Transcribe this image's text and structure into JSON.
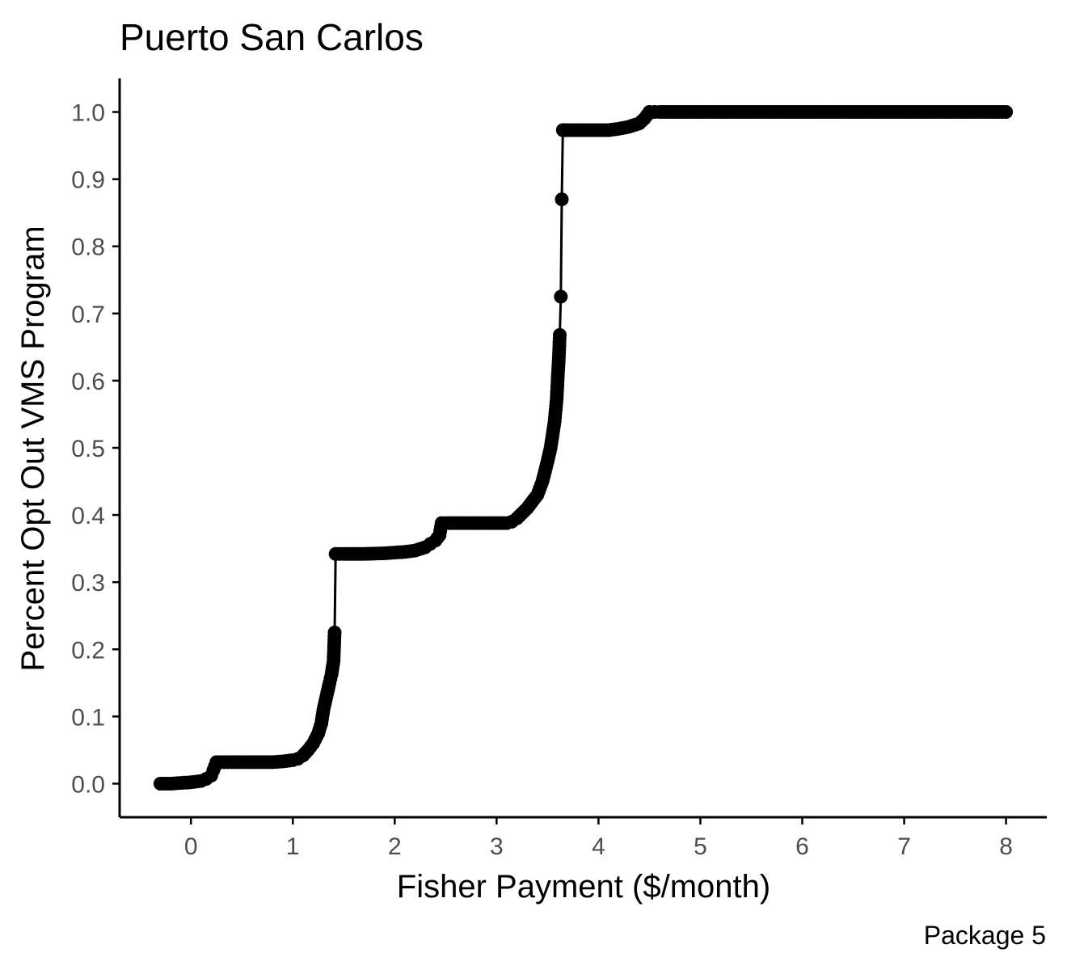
{
  "chart_data": {
    "type": "line",
    "title": "Puerto San Carlos",
    "caption": "Package 5",
    "xlabel": "Fisher Payment ($/month)",
    "ylabel": "Percent Opt Out VMS Program",
    "xlim": [
      -0.7,
      8.4
    ],
    "ylim": [
      -0.05,
      1.05
    ],
    "xticks": [
      0,
      1,
      2,
      3,
      4,
      5,
      6,
      7,
      8
    ],
    "xtick_labels": [
      "0",
      "1",
      "2",
      "3",
      "4",
      "5",
      "6",
      "7",
      "8"
    ],
    "yticks": [
      0.0,
      0.1,
      0.2,
      0.3,
      0.4,
      0.5,
      0.6,
      0.7,
      0.8,
      0.9,
      1.0
    ],
    "ytick_labels": [
      "0.0",
      "0.1",
      "0.2",
      "0.3",
      "0.4",
      "0.5",
      "0.6",
      "0.7",
      "0.8",
      "0.9",
      "1.0"
    ],
    "grid": false,
    "legend": "none",
    "colors": {
      "series": "#000000",
      "axis": "#000000",
      "tick_label": "#4d4d4d"
    },
    "series": [
      {
        "values_x": [
          -0.3,
          -0.2,
          -0.1,
          0.0,
          0.1,
          0.15,
          0.2,
          0.22,
          0.25,
          0.4,
          0.6,
          0.8,
          0.9,
          1.0,
          1.05,
          1.1,
          1.15,
          1.2,
          1.25,
          1.28,
          1.3,
          1.33,
          1.36,
          1.38,
          1.4,
          1.41,
          1.42,
          1.5,
          1.7,
          1.9,
          2.1,
          2.2,
          2.3,
          2.35,
          2.4,
          2.44,
          2.46,
          2.5,
          2.7,
          2.9,
          3.1,
          3.15,
          3.2,
          3.3,
          3.4,
          3.45,
          3.5,
          3.53,
          3.55,
          3.57,
          3.58,
          3.59,
          3.6,
          3.61,
          3.62,
          3.63,
          3.64,
          3.65,
          3.66,
          3.67,
          3.7,
          3.9,
          4.1,
          4.2,
          4.3,
          4.4,
          4.45,
          4.5,
          4.55,
          4.6,
          5.0,
          5.5,
          6.0,
          6.5,
          7.0,
          7.5,
          8.0
        ],
        "values": [
          0.0,
          0.0,
          0.001,
          0.002,
          0.004,
          0.007,
          0.012,
          0.02,
          0.032,
          0.032,
          0.032,
          0.032,
          0.033,
          0.035,
          0.037,
          0.042,
          0.05,
          0.06,
          0.075,
          0.09,
          0.11,
          0.13,
          0.15,
          0.163,
          0.183,
          0.225,
          0.342,
          0.342,
          0.342,
          0.343,
          0.345,
          0.347,
          0.352,
          0.357,
          0.362,
          0.37,
          0.388,
          0.388,
          0.388,
          0.388,
          0.388,
          0.39,
          0.395,
          0.41,
          0.43,
          0.45,
          0.48,
          0.5,
          0.52,
          0.54,
          0.557,
          0.573,
          0.605,
          0.63,
          0.668,
          0.725,
          0.87,
          0.973,
          0.973,
          0.973,
          0.973,
          0.973,
          0.973,
          0.975,
          0.978,
          0.983,
          0.99,
          1.0,
          1.0,
          1.0,
          1.0,
          1.0,
          1.0,
          1.0,
          1.0,
          1.0,
          1.0
        ]
      }
    ]
  }
}
